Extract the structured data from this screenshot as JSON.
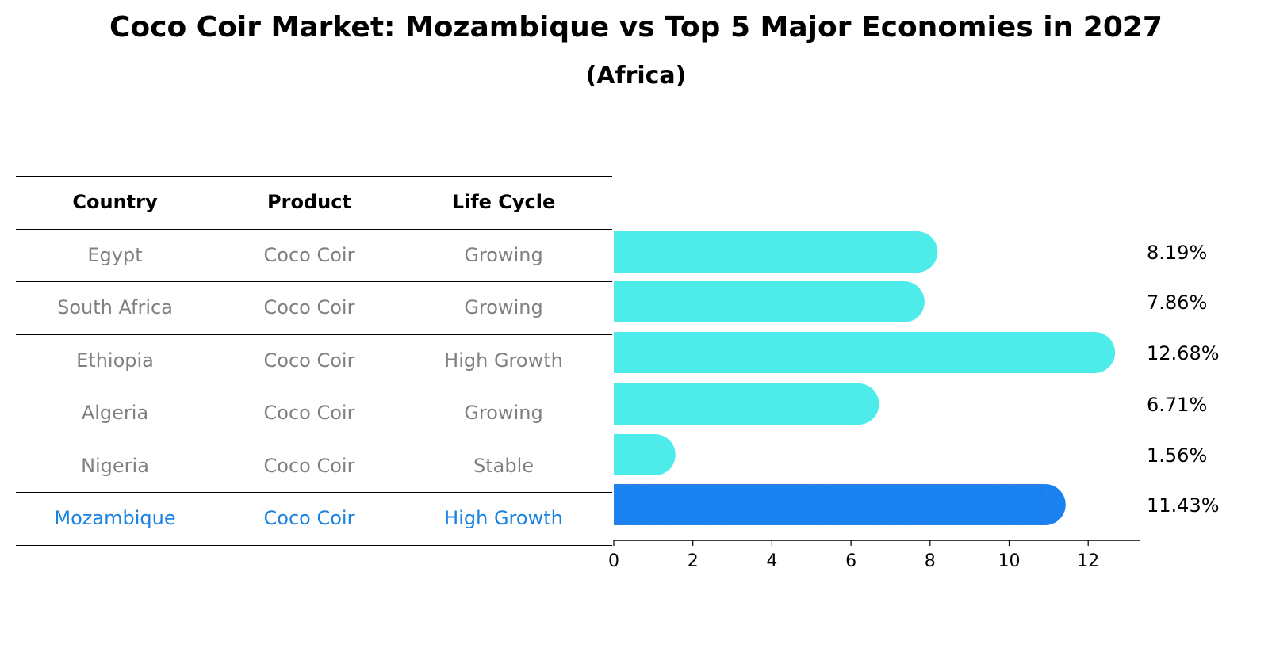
{
  "title": "Coco Coir Market: Mozambique vs Top 5 Major Economies in 2027",
  "subtitle": "(Africa)",
  "table": {
    "headers": [
      "Country",
      "Product",
      "Life Cycle"
    ],
    "rows": [
      [
        "Egypt",
        "Coco Coir",
        "Growing"
      ],
      [
        "South Africa",
        "Coco Coir",
        "Growing"
      ],
      [
        "Ethiopia",
        "Coco Coir",
        "High Growth"
      ],
      [
        "Algeria",
        "Coco Coir",
        "Growing"
      ],
      [
        "Nigeria",
        "Coco Coir",
        "Stable"
      ],
      [
        "Mozambique",
        "Coco Coir",
        "High Growth"
      ]
    ],
    "highlight_row": 5
  },
  "colors": {
    "bar": "#4debea",
    "highlight": "#1a82f0",
    "muted_text": "#808080",
    "highlight_text": "#1a82e0"
  },
  "chart_data": {
    "type": "bar",
    "orientation": "horizontal",
    "categories": [
      "Egypt",
      "South Africa",
      "Ethiopia",
      "Algeria",
      "Nigeria",
      "Mozambique"
    ],
    "values": [
      8.19,
      7.86,
      12.68,
      6.71,
      1.56,
      11.43
    ],
    "value_labels": [
      "8.19%",
      "7.86%",
      "12.68%",
      "6.71%",
      "1.56%",
      "11.43%"
    ],
    "xlim": [
      0,
      13.3
    ],
    "xticks": [
      0,
      2,
      4,
      6,
      8,
      10,
      12
    ],
    "highlight": "Mozambique"
  }
}
